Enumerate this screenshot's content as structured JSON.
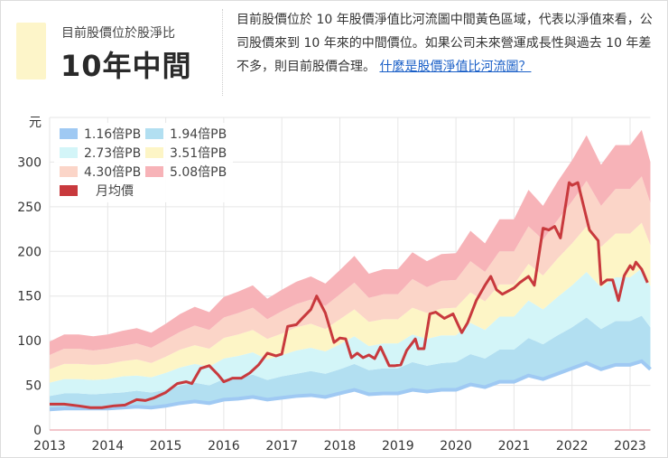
{
  "summary": {
    "label": "目前股價位於股淨比",
    "value": "10年中間",
    "swatch_color": "#fdf5c9",
    "description": "目前股價位於 10 年股價淨值比河流圖中間黃色區域，代表以淨值來看，公司股價來到 10 年來的中間價位。如果公司未來營運成長性與過去 10 年差不多，則目前股價合理。",
    "link_label": "什麼是股價淨值比河流圖？"
  },
  "chart_data": {
    "type": "area",
    "ylabel": "元",
    "ylim": [
      0,
      350
    ],
    "yticks": [
      0,
      50,
      100,
      150,
      200,
      250,
      300
    ],
    "xlim": [
      2013,
      2023.35
    ],
    "xticks": [
      "2013",
      "2014",
      "2015",
      "2016",
      "2017",
      "2018",
      "2019",
      "2020",
      "2021",
      "2022",
      "2023"
    ],
    "grid": true,
    "legend_position": "top-left",
    "x": [
      2013,
      2013.25,
      2013.5,
      2013.75,
      2014,
      2014.25,
      2014.5,
      2014.75,
      2015,
      2015.25,
      2015.5,
      2015.75,
      2016,
      2016.25,
      2016.5,
      2016.75,
      2017,
      2017.25,
      2017.5,
      2017.75,
      2018,
      2018.25,
      2018.5,
      2018.75,
      2019,
      2019.25,
      2019.5,
      2019.75,
      2020,
      2020.25,
      2020.5,
      2020.75,
      2021,
      2021.25,
      2021.5,
      2021.75,
      2022,
      2022.25,
      2022.5,
      2022.75,
      2023,
      2023.2,
      2023.35
    ],
    "bands": [
      {
        "name": "1.16倍PB",
        "color": "#9fc9f3",
        "values": [
          23,
          24,
          24,
          24,
          24,
          25,
          26,
          25,
          27,
          30,
          32,
          30,
          34,
          35,
          37,
          34,
          36,
          38,
          39,
          37,
          41,
          45,
          40,
          41,
          41,
          45,
          43,
          45,
          45,
          51,
          48,
          54,
          54,
          61,
          57,
          63,
          69,
          75,
          68,
          73,
          73,
          77,
          68
        ]
      },
      {
        "name": "1.94倍PB",
        "color": "#b2dff1",
        "values": [
          38,
          41,
          41,
          40,
          41,
          42,
          44,
          42,
          45,
          50,
          53,
          50,
          57,
          59,
          62,
          56,
          60,
          63,
          66,
          63,
          68,
          74,
          67,
          69,
          69,
          76,
          72,
          75,
          76,
          85,
          80,
          90,
          90,
          103,
          96,
          106,
          115,
          126,
          113,
          122,
          122,
          128,
          115
        ]
      },
      {
        "name": "2.73倍PB",
        "color": "#d3f5f8",
        "values": [
          53,
          57,
          57,
          56,
          57,
          60,
          61,
          59,
          64,
          70,
          74,
          71,
          80,
          83,
          87,
          79,
          84,
          89,
          92,
          88,
          96,
          105,
          94,
          97,
          97,
          107,
          102,
          106,
          106,
          120,
          112,
          127,
          127,
          145,
          135,
          149,
          162,
          177,
          160,
          171,
          171,
          181,
          161
        ]
      },
      {
        "name": "3.51倍PB",
        "color": "#fdf5c6",
        "values": [
          68,
          74,
          74,
          73,
          74,
          77,
          79,
          75,
          82,
          90,
          95,
          91,
          103,
          107,
          112,
          102,
          108,
          115,
          119,
          113,
          124,
          135,
          121,
          124,
          124,
          137,
          131,
          136,
          137,
          154,
          144,
          163,
          163,
          186,
          173,
          192,
          209,
          228,
          205,
          220,
          220,
          232,
          207
        ]
      },
      {
        "name": "4.30倍PB",
        "color": "#fbd5c8",
        "values": [
          84,
          91,
          91,
          89,
          91,
          94,
          97,
          92,
          101,
          110,
          117,
          112,
          126,
          131,
          137,
          124,
          133,
          141,
          146,
          139,
          152,
          165,
          148,
          152,
          152,
          169,
          160,
          167,
          168,
          189,
          177,
          200,
          200,
          228,
          213,
          235,
          256,
          279,
          251,
          270,
          270,
          284,
          254
        ]
      },
      {
        "name": "5.08倍PB",
        "color": "#f7b3b8",
        "values": [
          99,
          107,
          107,
          105,
          107,
          111,
          114,
          109,
          119,
          130,
          138,
          132,
          149,
          155,
          162,
          147,
          157,
          166,
          172,
          164,
          179,
          195,
          175,
          180,
          180,
          199,
          189,
          197,
          198,
          223,
          209,
          236,
          236,
          269,
          251,
          278,
          302,
          330,
          297,
          319,
          319,
          336,
          300
        ]
      }
    ],
    "price": {
      "name": "月均價",
      "color": "#c8393d",
      "x": [
        2013,
        2013.25,
        2013.5,
        2013.7,
        2013.9,
        2014.1,
        2014.3,
        2014.5,
        2014.65,
        2014.8,
        2015,
        2015.2,
        2015.35,
        2015.45,
        2015.6,
        2015.75,
        2015.9,
        2016,
        2016.15,
        2016.3,
        2016.45,
        2016.6,
        2016.75,
        2016.9,
        2017,
        2017.1,
        2017.25,
        2017.35,
        2017.5,
        2017.6,
        2017.75,
        2017.9,
        2018,
        2018.1,
        2018.2,
        2018.3,
        2018.4,
        2018.5,
        2018.6,
        2018.7,
        2018.85,
        2018.95,
        2019.05,
        2019.15,
        2019.3,
        2019.35,
        2019.45,
        2019.55,
        2019.65,
        2019.8,
        2019.95,
        2020.1,
        2020.2,
        2020.35,
        2020.5,
        2020.6,
        2020.7,
        2020.8,
        2021,
        2021.1,
        2021.25,
        2021.35,
        2021.5,
        2021.6,
        2021.7,
        2021.8,
        2021.95,
        2022,
        2022.1,
        2022.3,
        2022.45,
        2022.5,
        2022.6,
        2022.7,
        2022.8,
        2022.9,
        2023,
        2023.05,
        2023.1,
        2023.2,
        2023.3
      ],
      "values": [
        29,
        29,
        27,
        25,
        25,
        27,
        28,
        34,
        33,
        36,
        42,
        52,
        54,
        52,
        69,
        72,
        62,
        54,
        58,
        58,
        64,
        73,
        86,
        83,
        85,
        116,
        118,
        125,
        135,
        150,
        131,
        98,
        103,
        102,
        81,
        86,
        81,
        84,
        80,
        93,
        72,
        72,
        73,
        89,
        102,
        91,
        91,
        130,
        132,
        125,
        130,
        109,
        120,
        145,
        162,
        172,
        157,
        152,
        159,
        165,
        172,
        162,
        226,
        224,
        228,
        215,
        277,
        274,
        277,
        224,
        212,
        163,
        168,
        168,
        145,
        173,
        184,
        180,
        188,
        180,
        165
      ]
    }
  }
}
